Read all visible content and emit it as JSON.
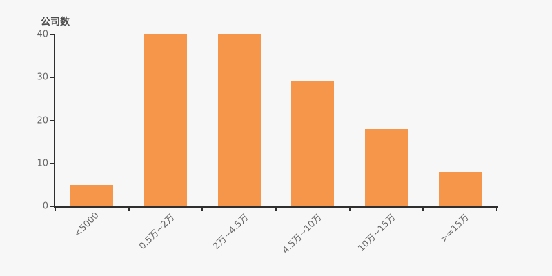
{
  "chart_data": {
    "type": "bar",
    "title": "公司数",
    "ylabel": "公司数",
    "xlabel": "",
    "categories": [
      "<5000",
      "0.5万~2万",
      "2万~4.5万",
      "4.5万~10万",
      "10万~15万",
      ">=15万"
    ],
    "values": [
      5,
      40,
      40,
      29,
      18,
      8
    ],
    "ylim": [
      0,
      40
    ],
    "yticks": [
      0,
      10,
      20,
      30,
      40
    ],
    "grid": false,
    "legend": "none",
    "x_label_rotation_deg": 45,
    "colors": {
      "bar": "#f5964a",
      "background": "#f7f7f7",
      "axis": "#2f2f2f",
      "tick_label": "#666666",
      "title": "#4c4c4c"
    }
  }
}
